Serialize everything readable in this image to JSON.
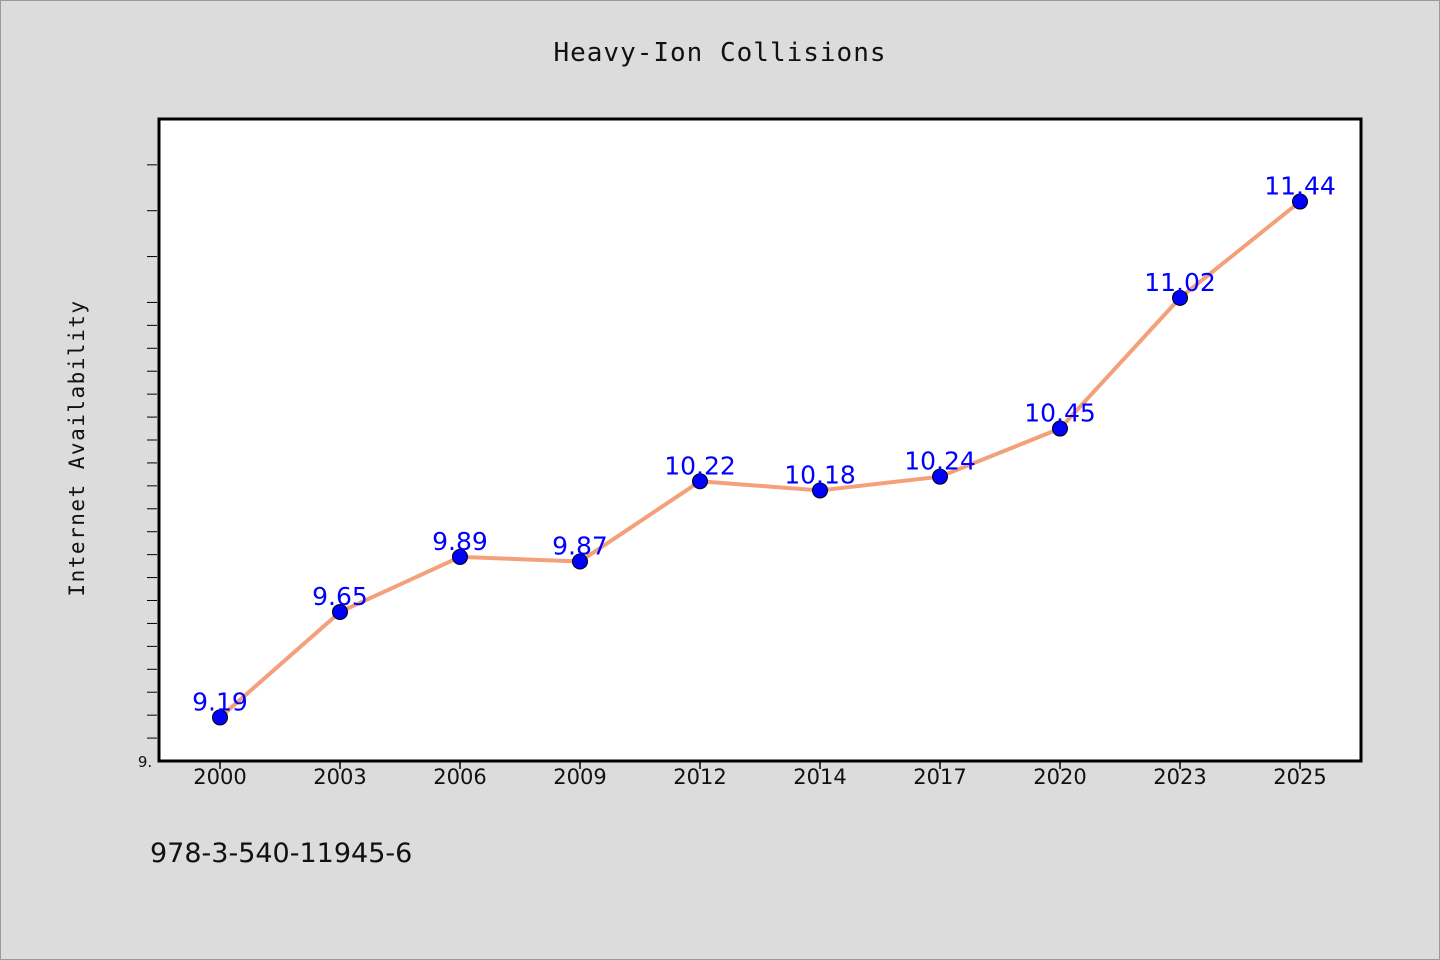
{
  "chart_data": {
    "type": "line",
    "title": "Heavy-Ion Collisions",
    "xlabel": "",
    "ylabel": "Internet Availability",
    "categories": [
      "2000",
      "2003",
      "2006",
      "2009",
      "2012",
      "2014",
      "2017",
      "2020",
      "2023",
      "2025"
    ],
    "series": [
      {
        "values": [
          9.19,
          9.65,
          9.89,
          9.87,
          10.22,
          10.18,
          10.24,
          10.45,
          11.02,
          11.44
        ],
        "data_labels": [
          "9.19",
          "9.65",
          "9.89",
          "9.87",
          "10.22",
          "10.18",
          "10.24",
          "10.45",
          "11.02",
          "11.44"
        ],
        "line_color": "#f4a07a",
        "marker_color": "#0000ff",
        "label_color": "#0000ff"
      }
    ],
    "ylim": [
      9.0,
      11.8
    ],
    "y_tick_label": "9.",
    "grid": false,
    "legend": "none"
  },
  "footer": {
    "text": "978-3-540-11945-6"
  },
  "colors": {
    "background": "#dcdcdc",
    "plot_background": "#ffffff",
    "axis": "#000000"
  }
}
